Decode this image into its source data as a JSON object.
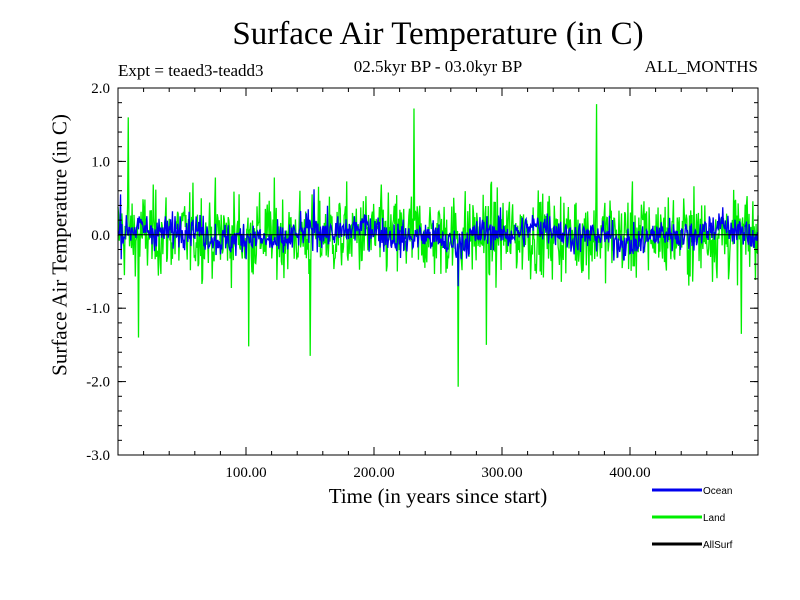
{
  "title": "Surface Air Temperature (in C)",
  "expt": "Expt = teaed3-teadd3",
  "period": "02.5kyr BP - 03.0kyr BP",
  "months": "ALL_MONTHS",
  "chart_data": {
    "type": "line",
    "title": "Surface Air Temperature (in C)",
    "xlabel": "Time (in years since start)",
    "ylabel": "Surface Air Temperature (in C)",
    "xlim": [
      0,
      500
    ],
    "ylim": [
      -3.0,
      2.0
    ],
    "x_ticks": [
      100,
      200,
      300,
      400
    ],
    "x_tick_labels": [
      "100.00",
      "200.00",
      "300.00",
      "400.00"
    ],
    "y_ticks": [
      -3,
      -2,
      -1,
      0,
      1,
      2
    ],
    "y_tick_labels": [
      "-3.0",
      "-2.0",
      "-1.0",
      "0.0",
      "1.0",
      "2.0"
    ],
    "grid": false,
    "legend_position": "bottom-right",
    "series": [
      {
        "name": "Land",
        "color": "#00ee00",
        "n_points": 1000,
        "x_start": 0,
        "x_end": 500,
        "noise_std": 0.5,
        "notable_points": [
          {
            "x": 374,
            "y": 1.78
          },
          {
            "x": 231,
            "y": 1.72
          },
          {
            "x": 266,
            "y": -2.07
          },
          {
            "x": 150,
            "y": -1.65
          },
          {
            "x": 102,
            "y": -1.52
          },
          {
            "x": 16,
            "y": -1.4
          },
          {
            "x": 288,
            "y": -1.5
          },
          {
            "x": 487,
            "y": -1.35
          },
          {
            "x": 8,
            "y": 1.6
          }
        ]
      },
      {
        "name": "Ocean",
        "color": "#0000ee",
        "n_points": 1000,
        "x_start": 0,
        "x_end": 500,
        "noise_std": 0.2,
        "notable_points": [
          {
            "x": 153,
            "y": 0.62
          },
          {
            "x": 266,
            "y": -0.7
          },
          {
            "x": 2,
            "y": 0.55
          }
        ]
      },
      {
        "name": "AllSurf",
        "color": "#000000",
        "n_points": 2,
        "x": [
          0,
          500
        ],
        "values": [
          0.0,
          0.0
        ]
      }
    ],
    "legend": [
      {
        "name": "Ocean",
        "color": "#0000ee"
      },
      {
        "name": "Land",
        "color": "#00ee00"
      },
      {
        "name": "AllSurf",
        "color": "#000000"
      }
    ]
  }
}
